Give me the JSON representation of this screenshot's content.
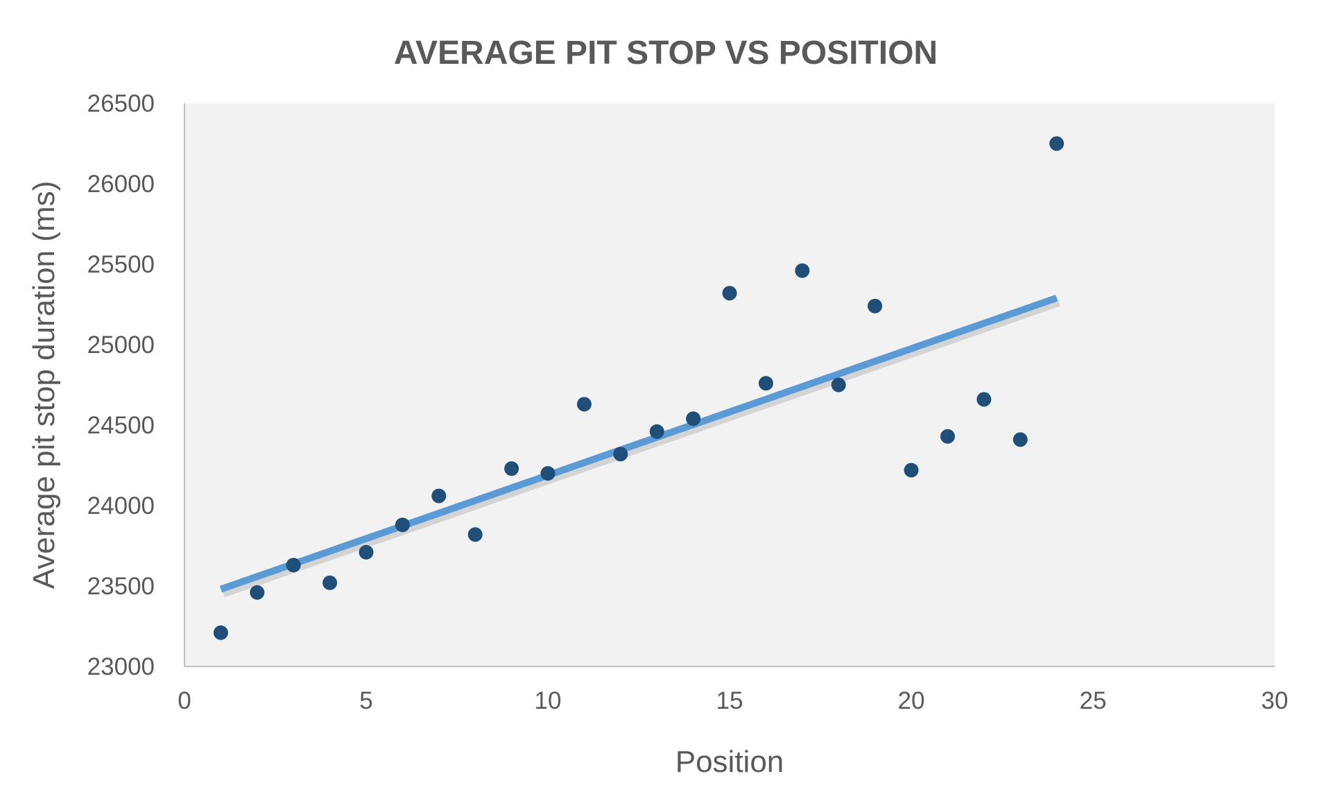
{
  "chart_data": {
    "type": "scatter",
    "title": "AVERAGE PIT STOP VS POSITION",
    "xlabel": "Position",
    "ylabel": "Average pit stop duration (ms)",
    "xlim": [
      0,
      30
    ],
    "ylim": [
      23000,
      26500
    ],
    "xticks": [
      0,
      5,
      10,
      15,
      20,
      25,
      30
    ],
    "yticks": [
      23000,
      23500,
      24000,
      24500,
      25000,
      25500,
      26000,
      26500
    ],
    "x_tick_labels": [
      "0",
      "5",
      "10",
      "15",
      "20",
      "25",
      "30"
    ],
    "y_tick_labels": [
      "23000",
      "23500",
      "24000",
      "24500",
      "25000",
      "25500",
      "26000",
      "26500"
    ],
    "grid": false,
    "legend": "none",
    "plot_background": "#f2f2f2",
    "series": [
      {
        "color": "#1f4e79",
        "marker": "circle",
        "points": [
          {
            "x": 1,
            "y": 23210
          },
          {
            "x": 2,
            "y": 23460
          },
          {
            "x": 3,
            "y": 23630
          },
          {
            "x": 4,
            "y": 23520
          },
          {
            "x": 5,
            "y": 23710
          },
          {
            "x": 6,
            "y": 23880
          },
          {
            "x": 7,
            "y": 24060
          },
          {
            "x": 8,
            "y": 23820
          },
          {
            "x": 9,
            "y": 24230
          },
          {
            "x": 10,
            "y": 24200
          },
          {
            "x": 11,
            "y": 24630
          },
          {
            "x": 12,
            "y": 24320
          },
          {
            "x": 13,
            "y": 24460
          },
          {
            "x": 14,
            "y": 24540
          },
          {
            "x": 15,
            "y": 25320
          },
          {
            "x": 16,
            "y": 24760
          },
          {
            "x": 17,
            "y": 25460
          },
          {
            "x": 18,
            "y": 24750
          },
          {
            "x": 19,
            "y": 25240
          },
          {
            "x": 20,
            "y": 24220
          },
          {
            "x": 21,
            "y": 24430
          },
          {
            "x": 22,
            "y": 24660
          },
          {
            "x": 23,
            "y": 24410
          },
          {
            "x": 24,
            "y": 26250
          }
        ]
      }
    ],
    "trendline": {
      "type": "linear",
      "color": "#5b9bd5",
      "from": {
        "x": 1,
        "y": 23480
      },
      "to": {
        "x": 24,
        "y": 25290
      }
    }
  }
}
